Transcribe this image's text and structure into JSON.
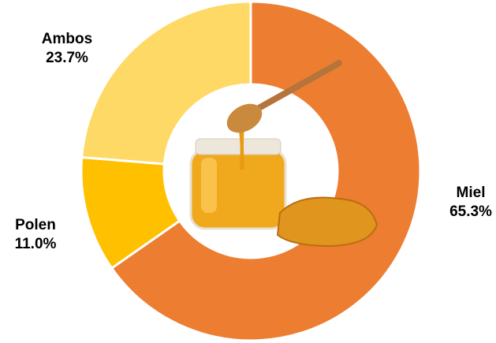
{
  "chart_data": {
    "type": "pie",
    "categories": [
      "Miel",
      "Polen",
      "Ambos"
    ],
    "values": [
      65.3,
      11.0,
      23.7
    ],
    "value_labels": [
      "65.3%",
      "11.0%",
      "23.7%"
    ],
    "colors": [
      "#ED7D31",
      "#FFC000",
      "#FFD966"
    ]
  }
}
